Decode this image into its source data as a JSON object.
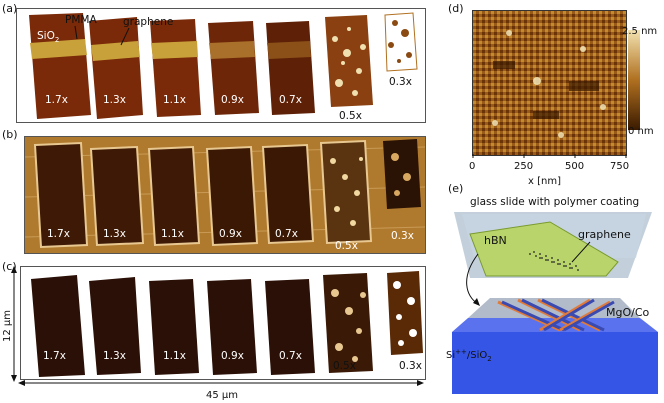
{
  "panels": {
    "a": {
      "label": "(a)",
      "sio2": "SiO",
      "sio2_sub": "2",
      "pmma": "PMMA",
      "graphene": "graphene",
      "scales": [
        "1.7x",
        "1.3x",
        "1.1x",
        "0.9x",
        "0.7x",
        "0.5x",
        "0.3x"
      ]
    },
    "b": {
      "label": "(b)",
      "scales": [
        "1.7x",
        "1.3x",
        "1.1x",
        "0.9x",
        "0.7x",
        "0.5x",
        "0.3x"
      ]
    },
    "c": {
      "label": "(c)",
      "scales": [
        "1.7x",
        "1.3x",
        "1.1x",
        "0.9x",
        "0.7x",
        "0.5x",
        "0.3x"
      ],
      "y_scale": "12 µm",
      "x_scale": "45 µm"
    },
    "d": {
      "label": "(d)",
      "colorbar_max": "2.5 nm",
      "colorbar_min": "0 nm",
      "x_ticks": [
        "0",
        "250",
        "500",
        "750"
      ],
      "xlabel": "x [nm]",
      "colors": {
        "dark": "#3a1a00",
        "mid": "#b07020",
        "light": "#f2e2b0"
      }
    },
    "e": {
      "label": "(e)",
      "top_caption": "glass slide with polymer coating",
      "hbn": "hBN",
      "graphene": "graphene",
      "mgo": "MgO/Co",
      "substrate": "Si",
      "substrate_sup": "++",
      "substrate_rest": "/SiO",
      "substrate_sub": "2"
    }
  },
  "colors": {
    "film_a": "#7a2a08",
    "stripe_a": "#c9a13a",
    "bg_b": "#b07a2e",
    "glass": "#b8c8d6",
    "hbn": "#b8d46a",
    "substrate": "#3455e6"
  }
}
